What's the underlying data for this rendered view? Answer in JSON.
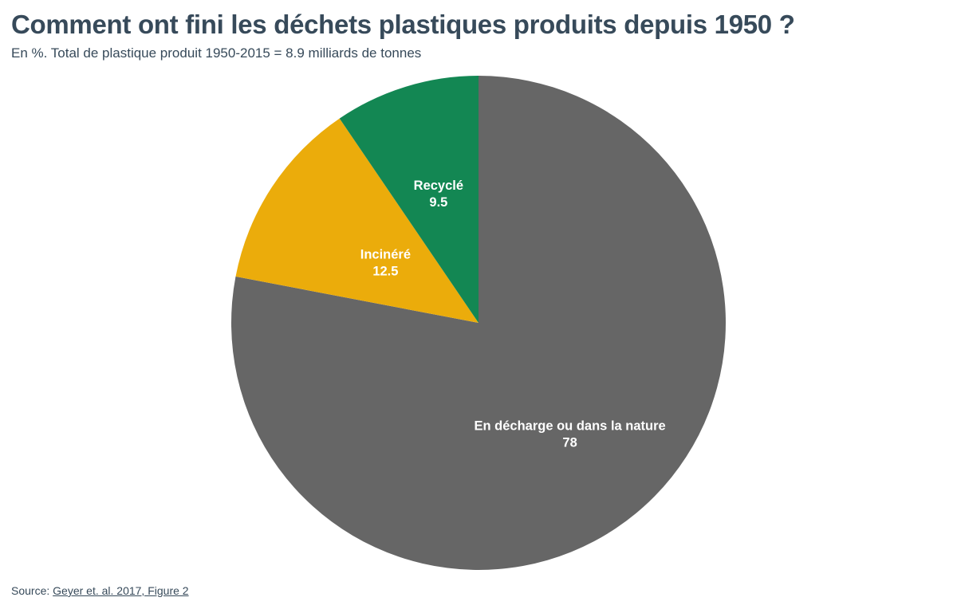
{
  "header": {
    "title": "Comment ont fini les déchets plastiques produits depuis 1950 ?",
    "subtitle": "En %. Total de plastique produit 1950-2015 = 8.9 milliards de tonnes"
  },
  "footer": {
    "source_label": "Source:",
    "source_link": "Geyer et. al. 2017, Figure 2"
  },
  "chart_data": {
    "type": "pie",
    "title": "Comment ont fini les déchets plastiques produits depuis 1950 ?",
    "subtitle": "En %. Total de plastique produit 1950-2015 = 8.9 milliards de tonnes",
    "start_angle": "12 o'clock, clockwise",
    "slices": [
      {
        "label": "En décharge ou dans la nature",
        "value": 78,
        "value_label": "78",
        "color": "#666666"
      },
      {
        "label": "Incinéré",
        "value": 12.5,
        "value_label": "12.5",
        "color": "#ebac0b"
      },
      {
        "label": "Recyclé",
        "value": 9.5,
        "value_label": "9.5",
        "color": "#138753"
      }
    ]
  }
}
